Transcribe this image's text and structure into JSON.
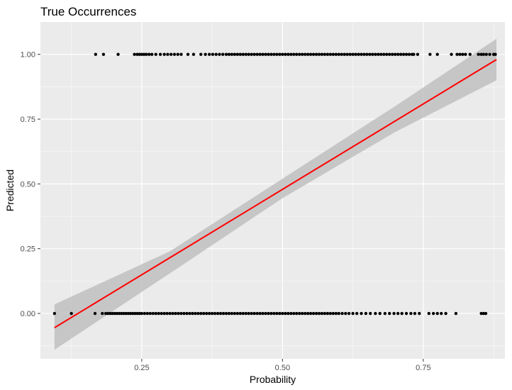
{
  "chart_data": {
    "type": "scatter",
    "title": "True Occurrences",
    "xlabel": "Probability",
    "ylabel": "Predicted",
    "xlim": [
      0.07,
      0.895
    ],
    "ylim": [
      -0.175,
      1.125
    ],
    "x_ticks": [
      0.25,
      0.5,
      0.75
    ],
    "x_tick_labels": [
      "0.25",
      "0.50",
      "0.75"
    ],
    "y_ticks": [
      0.0,
      0.25,
      0.5,
      0.75,
      1.0
    ],
    "y_tick_labels": [
      "0.00",
      "0.25",
      "0.50",
      "0.75",
      "1.00"
    ],
    "grid": true,
    "legend": "none",
    "colors": {
      "panel_background": "#ebebeb",
      "grid_major": "#ffffff",
      "points": "#000000",
      "fit_line": "#ff0000",
      "confidence_band": "#c0c0c0"
    },
    "series": [
      {
        "points_y0": [
          0.095,
          0.125,
          0.167,
          0.18,
          0.186,
          0.19,
          0.194,
          0.198,
          0.202,
          0.206,
          0.21,
          0.214,
          0.218,
          0.222,
          0.226,
          0.23,
          0.234,
          0.238,
          0.242,
          0.246,
          0.25,
          0.255,
          0.26,
          0.265,
          0.27,
          0.275,
          0.28,
          0.285,
          0.29,
          0.295,
          0.3,
          0.305,
          0.31,
          0.315,
          0.32,
          0.325,
          0.33,
          0.335,
          0.34,
          0.345,
          0.35,
          0.355,
          0.36,
          0.365,
          0.37,
          0.375,
          0.38,
          0.385,
          0.39,
          0.395,
          0.4,
          0.405,
          0.41,
          0.415,
          0.42,
          0.425,
          0.43,
          0.435,
          0.44,
          0.445,
          0.45,
          0.455,
          0.46,
          0.465,
          0.47,
          0.475,
          0.48,
          0.485,
          0.49,
          0.495,
          0.5,
          0.505,
          0.51,
          0.515,
          0.52,
          0.525,
          0.53,
          0.535,
          0.54,
          0.545,
          0.55,
          0.555,
          0.56,
          0.565,
          0.57,
          0.575,
          0.58,
          0.585,
          0.59,
          0.595,
          0.6,
          0.606,
          0.612,
          0.618,
          0.625,
          0.632,
          0.64,
          0.648,
          0.656,
          0.665,
          0.673,
          0.682,
          0.69,
          0.698,
          0.705,
          0.712,
          0.72,
          0.728,
          0.735,
          0.743,
          0.76,
          0.768,
          0.775,
          0.782,
          0.79,
          0.808,
          0.853,
          0.857,
          0.861
        ],
        "points_y1": [
          0.168,
          0.182,
          0.208,
          0.237,
          0.242,
          0.246,
          0.25,
          0.254,
          0.258,
          0.263,
          0.268,
          0.275,
          0.283,
          0.29,
          0.296,
          0.302,
          0.308,
          0.314,
          0.32,
          0.332,
          0.342,
          0.355,
          0.363,
          0.37,
          0.376,
          0.382,
          0.388,
          0.394,
          0.4,
          0.405,
          0.41,
          0.415,
          0.42,
          0.425,
          0.43,
          0.435,
          0.44,
          0.445,
          0.45,
          0.455,
          0.46,
          0.465,
          0.47,
          0.475,
          0.48,
          0.485,
          0.49,
          0.495,
          0.5,
          0.505,
          0.51,
          0.515,
          0.52,
          0.525,
          0.53,
          0.535,
          0.54,
          0.545,
          0.55,
          0.555,
          0.56,
          0.565,
          0.57,
          0.575,
          0.58,
          0.585,
          0.59,
          0.595,
          0.6,
          0.605,
          0.61,
          0.615,
          0.62,
          0.625,
          0.63,
          0.635,
          0.64,
          0.645,
          0.65,
          0.655,
          0.66,
          0.665,
          0.67,
          0.675,
          0.68,
          0.685,
          0.69,
          0.695,
          0.7,
          0.705,
          0.71,
          0.715,
          0.72,
          0.725,
          0.73,
          0.733,
          0.74,
          0.762,
          0.775,
          0.8,
          0.81,
          0.815,
          0.82,
          0.825,
          0.833,
          0.848,
          0.853,
          0.857,
          0.862,
          0.868,
          0.875,
          0.878
        ]
      }
    ],
    "fit_line": {
      "x": [
        0.095,
        0.88
      ],
      "y": [
        -0.055,
        0.98
      ]
    },
    "confidence_band": {
      "x": [
        0.095,
        0.3,
        0.5,
        0.7,
        0.88
      ],
      "lower": [
        -0.14,
        0.155,
        0.445,
        0.7,
        0.9
      ],
      "upper": [
        0.035,
        0.24,
        0.52,
        0.8,
        1.06
      ]
    }
  }
}
